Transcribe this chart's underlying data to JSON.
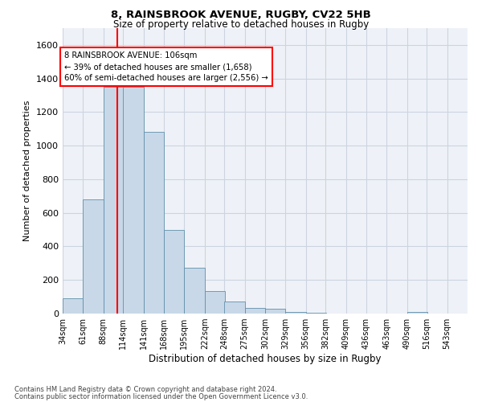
{
  "title": "8, RAINSBROOK AVENUE, RUGBY, CV22 5HB",
  "subtitle": "Size of property relative to detached houses in Rugby",
  "xlabel": "Distribution of detached houses by size in Rugby",
  "ylabel": "Number of detached properties",
  "bar_color": "#c8d8e8",
  "bar_edge_color": "#6090aa",
  "red_line_x": 106,
  "annotation_text": "8 RAINSBROOK AVENUE: 106sqm\n← 39% of detached houses are smaller (1,658)\n60% of semi-detached houses are larger (2,556) →",
  "footer1": "Contains HM Land Registry data © Crown copyright and database right 2024.",
  "footer2": "Contains public sector information licensed under the Open Government Licence v3.0.",
  "bins": [
    34,
    61,
    88,
    114,
    141,
    168,
    195,
    222,
    248,
    275,
    302,
    329,
    356,
    382,
    409,
    436,
    463,
    490,
    516,
    543,
    570
  ],
  "counts": [
    90,
    680,
    1350,
    1350,
    1080,
    500,
    275,
    135,
    70,
    35,
    30,
    10,
    3,
    2,
    1,
    1,
    0,
    10,
    1,
    1,
    0
  ],
  "ylim": [
    0,
    1700
  ],
  "yticks": [
    0,
    200,
    400,
    600,
    800,
    1000,
    1200,
    1400,
    1600
  ],
  "grid_color": "#ccd4e0",
  "background_color": "#eef2f8"
}
